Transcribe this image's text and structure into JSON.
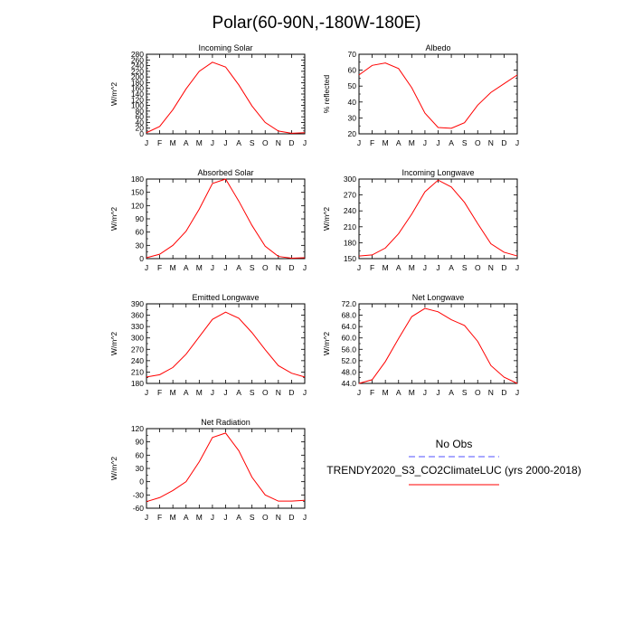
{
  "title": "Polar(60-90N,-180W-180E)",
  "months": [
    "J",
    "F",
    "M",
    "A",
    "M",
    "J",
    "J",
    "A",
    "S",
    "O",
    "N",
    "D",
    "J"
  ],
  "legend": {
    "obs_label": "No Obs",
    "obs_color": "#5050ff",
    "model_label": "TRENDY2020_S3_CO2ClimateLUC (yrs 2000-2018)",
    "model_color": "#ff0000"
  },
  "chart_data": [
    {
      "type": "line",
      "title": "Incoming Solar",
      "ylabel": "W/m^2",
      "ylim": [
        0,
        280
      ],
      "yticks": [
        "0",
        "20",
        "40",
        "60",
        "80",
        "100",
        "120",
        "140",
        "160",
        "180",
        "200",
        "220",
        "240",
        "260",
        "280"
      ],
      "series": [
        {
          "values": [
            4,
            26,
            85,
            158,
            220,
            252,
            235,
            172,
            98,
            40,
            10,
            2,
            4
          ]
        }
      ]
    },
    {
      "type": "line",
      "title": "Albedo",
      "ylabel": "% reflected",
      "ylim": [
        20,
        70
      ],
      "yticks": [
        "20",
        "30",
        "40",
        "50",
        "60",
        "70"
      ],
      "series": [
        {
          "values": [
            57,
            63,
            64.5,
            61,
            49,
            33,
            24,
            23.5,
            27,
            38,
            46,
            51.5,
            57
          ]
        }
      ]
    },
    {
      "type": "line",
      "title": "Absorbed Solar",
      "ylabel": "W/m^2",
      "ylim": [
        0,
        180
      ],
      "yticks": [
        "0",
        "30",
        "60",
        "90",
        "120",
        "150",
        "180"
      ],
      "series": [
        {
          "values": [
            2,
            10,
            30,
            62,
            112,
            170,
            180,
            130,
            75,
            28,
            5,
            1,
            2
          ]
        }
      ]
    },
    {
      "type": "line",
      "title": "Incoming Longwave",
      "ylabel": "W/m^2",
      "ylim": [
        150,
        300
      ],
      "yticks": [
        "150",
        "180",
        "210",
        "240",
        "270",
        "300"
      ],
      "series": [
        {
          "values": [
            155,
            157,
            170,
            197,
            234,
            276,
            298,
            285,
            256,
            216,
            178,
            162,
            155
          ]
        }
      ]
    },
    {
      "type": "line",
      "title": "Emitted Longwave",
      "ylabel": "W/m^2",
      "ylim": [
        180,
        390
      ],
      "yticks": [
        "180",
        "210",
        "240",
        "270",
        "300",
        "330",
        "360",
        "390"
      ],
      "series": [
        {
          "values": [
            197,
            203,
            222,
            257,
            303,
            349,
            368,
            352,
            314,
            269,
            227,
            207,
            197
          ]
        }
      ]
    },
    {
      "type": "line",
      "title": "Net Longwave",
      "ylabel": "W/m^2",
      "ylim": [
        44,
        72
      ],
      "yticks": [
        "44.0",
        "48.0",
        "52.0",
        "56.0",
        "60.0",
        "64.0",
        "68.0",
        "72.0"
      ],
      "series": [
        {
          "values": [
            44,
            45.3,
            51.7,
            59.8,
            67.5,
            70.4,
            69.2,
            66.4,
            64.4,
            58.8,
            50.3,
            46.2,
            44
          ]
        }
      ]
    },
    {
      "type": "line",
      "title": "Net Radiation",
      "ylabel": "W/m^2",
      "ylim": [
        -60,
        120
      ],
      "yticks": [
        "-60",
        "-30",
        "0",
        "30",
        "60",
        "90",
        "120"
      ],
      "series": [
        {
          "values": [
            -45,
            -36,
            -20,
            0,
            45,
            100,
            110,
            70,
            10,
            -30,
            -44,
            -44,
            -42
          ]
        }
      ]
    }
  ]
}
